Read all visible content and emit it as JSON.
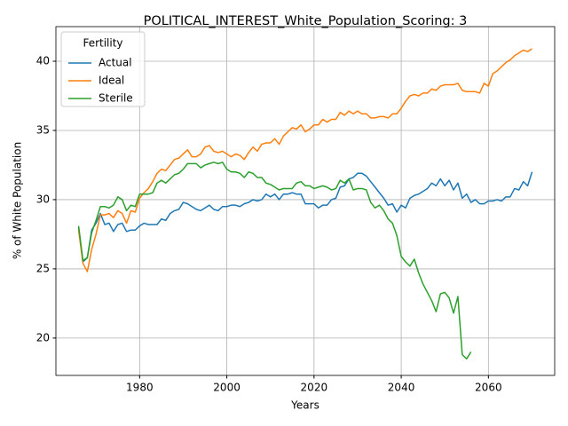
{
  "chart_data": {
    "type": "line",
    "title": "POLITICAL_INTEREST_White_Population_Scoring: 3",
    "xlabel": "Years",
    "ylabel": "% of White Population",
    "legend_title": "Fertility",
    "legend": "upper left",
    "grid": true,
    "xlim": [
      1960.8,
      2075.2
    ],
    "xticks": [
      1980,
      2000,
      2020,
      2040,
      2060
    ],
    "ylim": [
      17.3,
      42.5
    ],
    "yticks": [
      20,
      25,
      30,
      35,
      40
    ],
    "x": [
      1966,
      1967,
      1968,
      1969,
      1970,
      1971,
      1972,
      1973,
      1974,
      1975,
      1976,
      1977,
      1978,
      1979,
      1980,
      1981,
      1982,
      1983,
      1984,
      1985,
      1986,
      1987,
      1988,
      1989,
      1990,
      1991,
      1992,
      1993,
      1994,
      1995,
      1996,
      1997,
      1998,
      1999,
      2000,
      2001,
      2002,
      2003,
      2004,
      2005,
      2006,
      2007,
      2008,
      2009,
      2010,
      2011,
      2012,
      2013,
      2014,
      2015,
      2016,
      2017,
      2018,
      2019,
      2020,
      2021,
      2022,
      2023,
      2024,
      2025,
      2026,
      2027,
      2028,
      2029,
      2030,
      2031,
      2032,
      2033,
      2034,
      2035,
      2036,
      2037,
      2038,
      2039,
      2040,
      2041,
      2042,
      2043,
      2044,
      2045,
      2046,
      2047,
      2048,
      2049,
      2050,
      2051,
      2052,
      2053,
      2054,
      2055,
      2056,
      2057,
      2058,
      2059,
      2060,
      2061,
      2062,
      2063,
      2064,
      2065,
      2066,
      2067,
      2068,
      2069,
      2070
    ],
    "series": [
      {
        "name": "Actual",
        "color": "#1f77b4",
        "values": [
          28.0,
          25.5,
          25.8,
          27.8,
          28.3,
          29.0,
          28.2,
          28.3,
          27.7,
          28.2,
          28.3,
          27.7,
          27.8,
          27.8,
          28.1,
          28.3,
          28.2,
          28.2,
          28.2,
          28.6,
          28.5,
          29.0,
          29.2,
          29.3,
          29.8,
          29.7,
          29.5,
          29.3,
          29.2,
          29.4,
          29.6,
          29.3,
          29.2,
          29.5,
          29.5,
          29.6,
          29.6,
          29.5,
          29.7,
          29.8,
          30.0,
          29.9,
          30.0,
          30.4,
          30.2,
          30.4,
          30.0,
          30.4,
          30.4,
          30.5,
          30.4,
          30.4,
          29.7,
          29.7,
          29.7,
          29.4,
          29.6,
          29.6,
          30.0,
          30.1,
          30.9,
          31.0,
          31.5,
          31.6,
          31.9,
          31.9,
          31.7,
          31.3,
          30.9,
          30.5,
          30.1,
          29.6,
          29.7,
          29.1,
          29.6,
          29.4,
          30.1,
          30.3,
          30.4,
          30.6,
          30.8,
          31.2,
          31.0,
          31.5,
          31.0,
          31.4,
          30.7,
          31.2,
          30.1,
          30.4,
          29.8,
          30.0,
          29.7,
          29.7,
          29.9,
          29.9,
          30.0,
          29.9,
          30.2,
          30.2,
          30.8,
          30.7,
          31.3,
          31.0,
          32.0
        ]
      },
      {
        "name": "Ideal",
        "color": "#ff7f0e",
        "values": [
          27.8,
          25.4,
          24.8,
          26.4,
          27.5,
          28.9,
          28.9,
          29.0,
          28.7,
          29.2,
          29.0,
          28.3,
          29.2,
          29.1,
          30.1,
          30.5,
          30.8,
          31.3,
          31.9,
          32.2,
          32.1,
          32.5,
          32.9,
          33.0,
          33.3,
          33.6,
          33.1,
          33.1,
          33.3,
          33.8,
          33.9,
          33.5,
          33.4,
          33.5,
          33.3,
          33.1,
          33.3,
          33.2,
          32.9,
          33.4,
          33.8,
          33.5,
          34.0,
          34.1,
          34.1,
          34.4,
          34.0,
          34.6,
          34.9,
          35.2,
          35.1,
          35.4,
          34.9,
          35.1,
          35.4,
          35.4,
          35.8,
          35.6,
          35.8,
          35.8,
          36.3,
          36.1,
          36.4,
          36.2,
          36.4,
          36.2,
          36.2,
          35.9,
          35.9,
          36.0,
          36.0,
          35.9,
          36.2,
          36.2,
          36.6,
          37.1,
          37.5,
          37.6,
          37.5,
          37.7,
          37.7,
          38.0,
          37.9,
          38.2,
          38.3,
          38.3,
          38.3,
          38.4,
          37.9,
          37.8,
          37.8,
          37.8,
          37.7,
          38.4,
          38.2,
          39.1,
          39.3,
          39.6,
          39.9,
          40.1,
          40.4,
          40.6,
          40.8,
          40.7,
          40.9
        ]
      },
      {
        "name": "Sterile",
        "color": "#2ca02c",
        "values": [
          28.1,
          25.6,
          25.8,
          27.6,
          28.5,
          29.5,
          29.5,
          29.4,
          29.6,
          30.2,
          30.0,
          29.2,
          29.6,
          29.5,
          30.4,
          30.4,
          30.4,
          30.5,
          31.2,
          31.4,
          31.2,
          31.5,
          31.8,
          31.9,
          32.2,
          32.6,
          32.6,
          32.6,
          32.3,
          32.5,
          32.6,
          32.7,
          32.6,
          32.7,
          32.2,
          32.0,
          32.0,
          31.9,
          31.6,
          32.0,
          31.9,
          31.6,
          31.6,
          31.2,
          31.1,
          30.9,
          30.7,
          30.8,
          30.8,
          30.8,
          31.2,
          31.3,
          31.0,
          31.0,
          30.8,
          30.9,
          31.0,
          30.9,
          30.7,
          30.8,
          31.4,
          31.2,
          31.5,
          30.7,
          30.8,
          30.8,
          30.7,
          29.8,
          29.4,
          29.6,
          29.2,
          28.6,
          28.3,
          27.4,
          25.9,
          25.5,
          25.2,
          25.7,
          24.7,
          23.9,
          23.3,
          22.7,
          21.9,
          23.2,
          23.3,
          22.9,
          21.8,
          23.0,
          18.8,
          18.5,
          19.0,
          null,
          null,
          null,
          null,
          null,
          null,
          null,
          null,
          null,
          null,
          null,
          null,
          null,
          null
        ]
      }
    ]
  }
}
